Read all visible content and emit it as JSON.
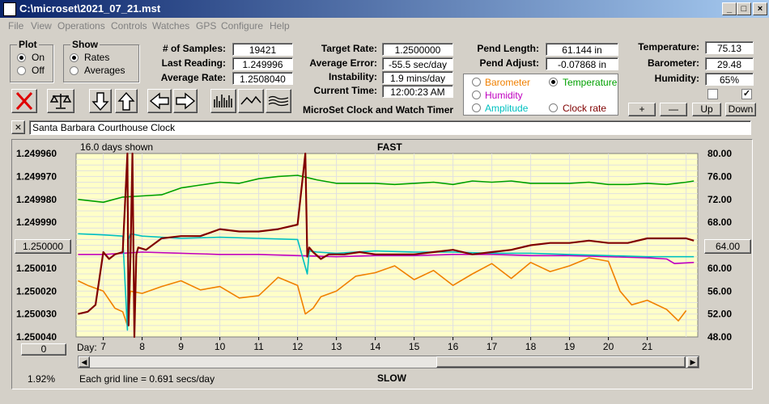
{
  "window": {
    "title": "C:\\microset\\2021_07_21.mst"
  },
  "menu": [
    "File",
    "View",
    "Operations",
    "Controls",
    "Watches",
    "GPS",
    "Configure",
    "Help"
  ],
  "plot_group": {
    "title": "Plot",
    "options": [
      "On",
      "Off"
    ],
    "selected": "On"
  },
  "show_group": {
    "title": "Show",
    "options": [
      "Rates",
      "Averages"
    ],
    "selected": "Rates"
  },
  "stats": {
    "samples_label": "# of Samples:",
    "samples": "19421",
    "last_label": "Last Reading:",
    "last": "1.249996",
    "avg_label": "Average Rate:",
    "avg": "1.2508040"
  },
  "rates": {
    "target_label": "Target Rate:",
    "target": "1.2500000",
    "avgerr_label": "Average Error:",
    "avgerr": "-55.5 sec/day",
    "instab_label": "Instability:",
    "instab": "1.9 mins/day",
    "time_label": "Current Time:",
    "time": "12:00:23 AM"
  },
  "app_caption": "MicroSet Clock and Watch Timer",
  "pend": {
    "length_label": "Pend Length:",
    "length": "61.144 in",
    "adjust_label": "Pend Adjust:",
    "adjust": "-0.07868 in"
  },
  "env": {
    "temp_label": "Temperature:",
    "temp": "75.13",
    "baro_label": "Barometer:",
    "baro": "29.48",
    "hum_label": "Humidity:",
    "hum": "65%"
  },
  "aux_options": [
    {
      "label": "Barometer",
      "color": "#f08000",
      "selected": false
    },
    {
      "label": "Temperature",
      "color": "#00a000",
      "selected": true
    },
    {
      "label": "Humidity",
      "color": "#c000c0",
      "selected": false
    },
    {
      "label": "Amplitude",
      "color": "#00c0c0",
      "selected": false
    },
    {
      "label": "Clock rate",
      "color": "#800000",
      "selected": false
    }
  ],
  "adjust_buttons": {
    "plus": "+",
    "minus": "—",
    "up": "Up",
    "down": "Down"
  },
  "checkboxes": [
    false,
    true
  ],
  "clock_name": "Santa Barbara Courthouse Clock",
  "close_x": "×",
  "plot": {
    "days_shown": "16.0 days shown",
    "fast": "FAST",
    "slow": "SLOW",
    "grid_note": "Each grid line = 0.691 secs/day",
    "percent": "1.92%",
    "day_label": "Day:",
    "center_btn": "1.250000",
    "right_btn": "64.00",
    "zero_btn": "0"
  },
  "icon_colors": {
    "plot_bg": "#ffffc8",
    "grid": "#e0e0e0",
    "rate": "#800000",
    "temp": "#00a000",
    "hum": "#c000c0",
    "amp": "#00c0c0",
    "baro": "#f08000"
  },
  "chart_data": {
    "type": "line",
    "left_ticks": [
      "1.249960",
      "1.249970",
      "1.249980",
      "1.249990",
      "1.250000",
      "1.250010",
      "1.250020",
      "1.250030",
      "1.250040"
    ],
    "right_ticks": [
      "80.00",
      "76.00",
      "72.00",
      "68.00",
      "64.00",
      "60.00",
      "56.00",
      "52.00",
      "48.00"
    ],
    "x_ticks": [
      7,
      8,
      9,
      10,
      11,
      12,
      13,
      14,
      15,
      16,
      17,
      18,
      19,
      20,
      21
    ],
    "xlim": [
      6.3,
      22.3
    ],
    "left_ylim": [
      1.25004,
      1.24996
    ],
    "right_ylim": [
      48,
      80
    ],
    "series": [
      {
        "name": "Clock rate",
        "axis": "left",
        "color": "#800000",
        "x": [
          6.35,
          6.6,
          6.8,
          7.0,
          7.15,
          7.3,
          7.5,
          7.62,
          7.65,
          7.7,
          7.75,
          7.8,
          7.85,
          7.9,
          8.1,
          8.5,
          9.0,
          9.5,
          10.0,
          10.5,
          11.0,
          11.5,
          12.0,
          12.2,
          12.25,
          12.3,
          12.4,
          12.6,
          12.8,
          13.2,
          13.6,
          14.0,
          14.5,
          15.0,
          15.5,
          16.0,
          16.5,
          17.0,
          17.5,
          18.0,
          18.5,
          19.0,
          19.5,
          20.0,
          20.5,
          21.0,
          21.5,
          22.0,
          22.2
        ],
        "y": [
          1.25003,
          1.250029,
          1.250026,
          1.250003,
          1.250006,
          1.250004,
          1.250003,
          1.24996,
          1.250035,
          1.250005,
          1.24996,
          1.25004,
          1.250004,
          1.250001,
          1.250002,
          1.249997,
          1.249996,
          1.249996,
          1.249993,
          1.249994,
          1.249994,
          1.249993,
          1.249991,
          1.24996,
          1.250005,
          1.250001,
          1.250003,
          1.250006,
          1.250004,
          1.250004,
          1.250003,
          1.250004,
          1.250004,
          1.250004,
          1.250003,
          1.250002,
          1.250004,
          1.250003,
          1.250002,
          1.25,
          1.249999,
          1.249999,
          1.249998,
          1.249999,
          1.249999,
          1.249997,
          1.249997,
          1.249997,
          1.249998
        ]
      },
      {
        "name": "Temperature",
        "axis": "right",
        "color": "#00a000",
        "x": [
          6.35,
          7.0,
          7.5,
          8.0,
          8.5,
          9.0,
          9.5,
          10.0,
          10.5,
          11.0,
          11.5,
          12.0,
          12.5,
          13.0,
          13.5,
          14.0,
          14.5,
          15.0,
          15.5,
          16.0,
          16.5,
          17.0,
          17.5,
          18.0,
          18.5,
          19.0,
          19.5,
          20.0,
          20.5,
          21.0,
          21.5,
          22.0,
          22.2
        ],
        "y": [
          72.0,
          71.5,
          72.4,
          72.6,
          72.8,
          74.0,
          74.5,
          75.0,
          74.8,
          75.6,
          76.0,
          76.2,
          75.4,
          74.8,
          74.8,
          74.8,
          74.6,
          74.8,
          75.0,
          74.6,
          75.2,
          75.0,
          75.2,
          74.8,
          74.8,
          74.8,
          75.0,
          74.6,
          74.6,
          74.8,
          74.6,
          75.0,
          75.2
        ]
      },
      {
        "name": "Amplitude",
        "axis": "right",
        "color": "#00c0c0",
        "x": [
          6.35,
          7.0,
          7.5,
          7.62,
          7.65,
          7.7,
          8.0,
          9.0,
          10.0,
          11.0,
          12.0,
          12.25,
          12.3,
          12.5,
          13.0,
          14.0,
          15.0,
          16.0,
          17.0,
          18.0,
          19.0,
          20.0,
          21.0,
          22.0,
          22.2
        ],
        "y": [
          66.0,
          65.8,
          65.6,
          49.2,
          65.0,
          66.0,
          65.6,
          65.2,
          65.4,
          65.2,
          65.0,
          59.0,
          63.0,
          62.8,
          62.6,
          63.0,
          62.8,
          62.8,
          62.6,
          62.6,
          62.4,
          62.2,
          62.0,
          62.0,
          62.0
        ]
      },
      {
        "name": "Humidity",
        "axis": "right",
        "color": "#c000c0",
        "x": [
          6.35,
          7.0,
          7.5,
          8.0,
          9.0,
          10.0,
          11.0,
          12.0,
          13.0,
          14.0,
          15.0,
          16.0,
          17.0,
          18.0,
          19.0,
          20.0,
          21.0,
          21.5,
          21.7,
          22.2
        ],
        "y": [
          62.4,
          62.4,
          62.6,
          62.8,
          62.6,
          62.4,
          62.4,
          62.2,
          62.0,
          62.2,
          62.2,
          62.4,
          62.4,
          62.2,
          62.2,
          62.0,
          61.8,
          61.6,
          60.8,
          61.0
        ]
      },
      {
        "name": "Barometer",
        "axis": "right",
        "color": "#f08000",
        "x": [
          6.35,
          6.6,
          7.0,
          7.3,
          7.5,
          7.62,
          7.7,
          8.0,
          8.5,
          9.0,
          9.5,
          10.0,
          10.5,
          11.0,
          11.5,
          12.0,
          12.2,
          12.4,
          12.6,
          13.0,
          13.5,
          14.0,
          14.5,
          15.0,
          15.5,
          16.0,
          16.5,
          17.0,
          17.5,
          18.0,
          18.5,
          19.0,
          19.5,
          20.0,
          20.3,
          20.6,
          21.0,
          21.5,
          21.8,
          22.0
        ],
        "y": [
          57.8,
          57.0,
          56.0,
          53.0,
          52.4,
          50.0,
          56.0,
          55.6,
          56.8,
          57.8,
          56.2,
          56.8,
          54.8,
          55.2,
          58.4,
          57.0,
          52.0,
          53.0,
          55.0,
          56.0,
          58.6,
          59.2,
          60.4,
          58.0,
          59.6,
          57.0,
          59.0,
          60.8,
          58.2,
          61.0,
          59.4,
          60.4,
          61.8,
          61.2,
          56.0,
          53.6,
          54.4,
          52.8,
          50.8,
          52.6
        ]
      }
    ]
  }
}
